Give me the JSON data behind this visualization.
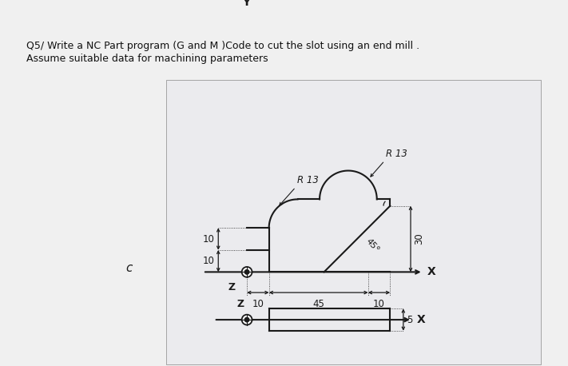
{
  "title_line1": "Q5/ Write a NC Part program (G and M )Code to cut the slot using an end mill .",
  "title_line2": "Assume suitable data for machining parameters",
  "bg_color": "#f0f0f0",
  "drawing_bg": "#e8e8ec",
  "line_color": "#1a1a1a",
  "text_color": "#1a1a1a",
  "side_label": "c",
  "R_lower": 13,
  "R_upper": 13,
  "dim_10_vert_upper": "10",
  "dim_10_vert_lower": "10",
  "dim_10_horiz_left": "10",
  "dim_45_horiz": "45",
  "dim_10_horiz_right": "10",
  "dim_30_vert": "30",
  "dim_45deg": "45°",
  "dim_5_slot": "5",
  "label_R13_lower": "R 13",
  "label_R13_upper": "R 13",
  "label_Y": "Y",
  "label_X": "X",
  "label_Z": "Z"
}
